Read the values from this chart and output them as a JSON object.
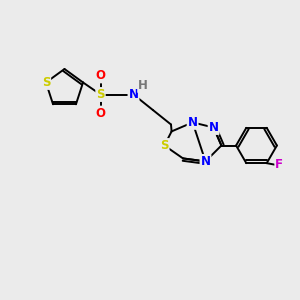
{
  "bg_color": "#ebebeb",
  "bond_color": "#000000",
  "atom_colors": {
    "S": "#cccc00",
    "O": "#ff0000",
    "N": "#0000ff",
    "F": "#cc00cc",
    "H": "#777777",
    "C": "#000000"
  },
  "font_size": 8.5,
  "line_width": 1.4
}
